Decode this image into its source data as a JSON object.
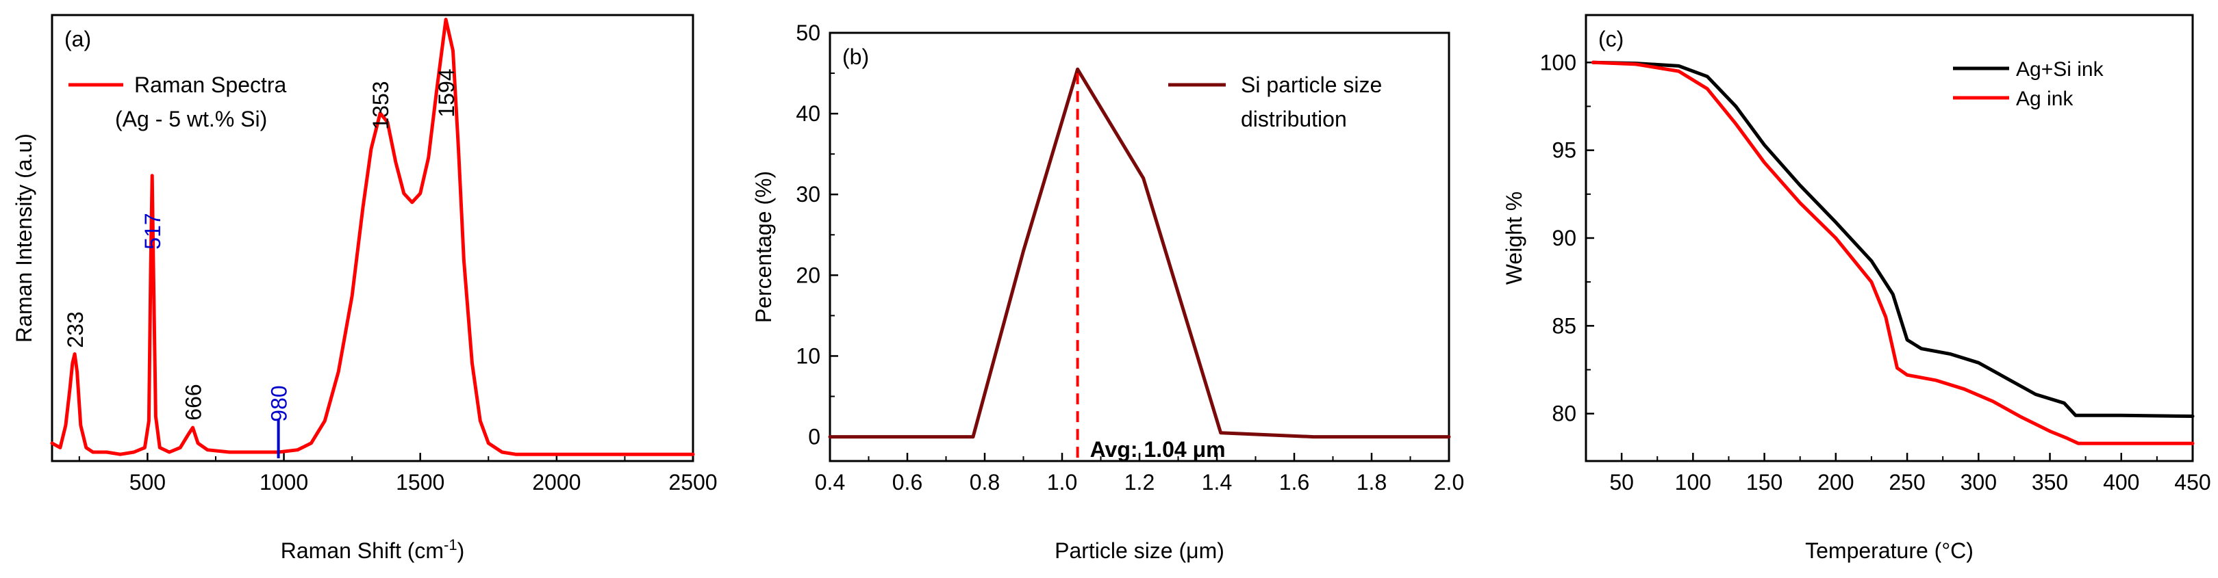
{
  "chart_data": [
    {
      "type": "line",
      "panel_label": "(a)",
      "xlabel": "Raman Shift (cm",
      "xlabel_sup": "-1",
      "xlabel_end": ")",
      "ylabel": "Raman Intensity (a.u)",
      "xlim": [
        150,
        2500
      ],
      "ylim": [
        0,
        1
      ],
      "x_ticks": [
        500,
        1000,
        1500,
        2000,
        2500
      ],
      "x_tick_labels": [
        "500",
        "1000",
        "1500",
        "2000",
        "2500"
      ],
      "y_ticks_shown": false,
      "grid": false,
      "legend": {
        "position": "top-left",
        "entries": [
          "Raman Spectra",
          "(Ag - 5 wt.% Si)"
        ]
      },
      "series": [
        {
          "name": "Raman Spectra (Ag - 5 wt.% Si)",
          "color": "#ff0000",
          "x": [
            150,
            180,
            200,
            215,
            225,
            233,
            242,
            255,
            275,
            300,
            350,
            400,
            450,
            490,
            505,
            512,
            517,
            522,
            530,
            545,
            580,
            620,
            650,
            666,
            685,
            720,
            800,
            900,
            980,
            1050,
            1100,
            1150,
            1200,
            1250,
            1290,
            1320,
            1353,
            1380,
            1410,
            1440,
            1470,
            1500,
            1530,
            1560,
            1594,
            1620,
            1640,
            1660,
            1690,
            1720,
            1750,
            1800,
            1850,
            1900,
            2000,
            2100,
            2200,
            2300,
            2400,
            2500
          ],
          "y": [
            0.04,
            0.03,
            0.08,
            0.16,
            0.22,
            0.24,
            0.2,
            0.08,
            0.03,
            0.02,
            0.02,
            0.015,
            0.02,
            0.03,
            0.09,
            0.45,
            0.64,
            0.42,
            0.1,
            0.03,
            0.02,
            0.03,
            0.06,
            0.075,
            0.04,
            0.025,
            0.02,
            0.02,
            0.02,
            0.025,
            0.04,
            0.09,
            0.2,
            0.37,
            0.57,
            0.7,
            0.78,
            0.76,
            0.67,
            0.6,
            0.58,
            0.6,
            0.68,
            0.83,
            0.99,
            0.92,
            0.7,
            0.45,
            0.22,
            0.09,
            0.04,
            0.02,
            0.015,
            0.015,
            0.015,
            0.015,
            0.015,
            0.015,
            0.015,
            0.015
          ]
        }
      ],
      "annotations": [
        {
          "text": "233",
          "x": 233,
          "color": "#000000"
        },
        {
          "text": "517",
          "x": 517,
          "color": "#0000cc"
        },
        {
          "text": "666",
          "x": 666,
          "color": "#000000"
        },
        {
          "text": "980",
          "x": 980,
          "color": "#0000cc"
        },
        {
          "text": "1353",
          "x": 1353,
          "color": "#000000"
        },
        {
          "text": "1594",
          "x": 1594,
          "color": "#000000"
        }
      ]
    },
    {
      "type": "line",
      "panel_label": "(b)",
      "xlabel": "Particle size (",
      "xlabel_unit": "μm",
      "xlabel_end": ")",
      "ylabel": "Percentage (%)",
      "xlim": [
        0.4,
        2.0
      ],
      "ylim": [
        -3,
        50
      ],
      "x_ticks": [
        0.4,
        0.6,
        0.8,
        1.0,
        1.2,
        1.4,
        1.6,
        1.8,
        2.0
      ],
      "x_tick_labels": [
        "0.4",
        "0.6",
        "0.8",
        "1.0",
        "1.2",
        "1.4",
        "1.6",
        "1.8",
        "2.0"
      ],
      "y_ticks": [
        0,
        10,
        20,
        30,
        40,
        50
      ],
      "y_tick_labels": [
        "0",
        "10",
        "20",
        "30",
        "40",
        "50"
      ],
      "grid": false,
      "legend": {
        "position": "top-right",
        "entries": [
          "Si particle size",
          "distribution"
        ]
      },
      "series": [
        {
          "name": "Si particle size distribution",
          "color": "#7a0a0a",
          "x": [
            0.4,
            0.77,
            0.9,
            1.04,
            1.21,
            1.41,
            1.65,
            2.0
          ],
          "y": [
            0,
            0,
            23,
            45.5,
            32,
            0.5,
            0,
            0
          ]
        }
      ],
      "marker_line": {
        "x": 1.04,
        "color": "#ff0000",
        "style": "dashed"
      },
      "annotation": "Avg: 1.04 μm"
    },
    {
      "type": "line",
      "panel_label": "(c)",
      "xlabel": "Temperature (",
      "xlabel_unit": "°C",
      "xlabel_end": ")",
      "ylabel": "Weight %",
      "xlim": [
        25,
        450
      ],
      "ylim": [
        77.3,
        102.7
      ],
      "x_ticks": [
        50,
        100,
        150,
        200,
        250,
        300,
        350,
        400,
        450
      ],
      "x_tick_labels": [
        "50",
        "100",
        "150",
        "200",
        "250",
        "300",
        "350",
        "400",
        "450"
      ],
      "y_ticks": [
        80,
        85,
        90,
        95,
        100
      ],
      "y_tick_labels": [
        "80",
        "85",
        "90",
        "95",
        "100"
      ],
      "grid": false,
      "legend": {
        "position": "top-right",
        "entries": [
          "Ag+Si ink",
          "Ag ink"
        ]
      },
      "series": [
        {
          "name": "Ag+Si ink",
          "color": "#000000",
          "x": [
            30,
            60,
            90,
            110,
            130,
            150,
            175,
            200,
            225,
            240,
            250,
            260,
            280,
            300,
            320,
            340,
            360,
            368,
            372,
            400,
            450
          ],
          "y": [
            100,
            99.95,
            99.8,
            99.2,
            97.5,
            95.3,
            93.0,
            90.9,
            88.7,
            86.8,
            84.2,
            83.7,
            83.4,
            82.9,
            82.0,
            81.1,
            80.6,
            79.9,
            79.9,
            79.9,
            79.85
          ]
        },
        {
          "name": "Ag ink",
          "color": "#ff0000",
          "x": [
            30,
            60,
            90,
            110,
            130,
            150,
            175,
            200,
            225,
            235,
            243,
            250,
            270,
            290,
            310,
            330,
            350,
            362,
            370,
            400,
            450
          ],
          "y": [
            100,
            99.9,
            99.5,
            98.5,
            96.5,
            94.3,
            92.0,
            90.0,
            87.5,
            85.5,
            82.6,
            82.2,
            81.9,
            81.4,
            80.7,
            79.8,
            79.0,
            78.6,
            78.3,
            78.3,
            78.3
          ]
        }
      ]
    }
  ]
}
